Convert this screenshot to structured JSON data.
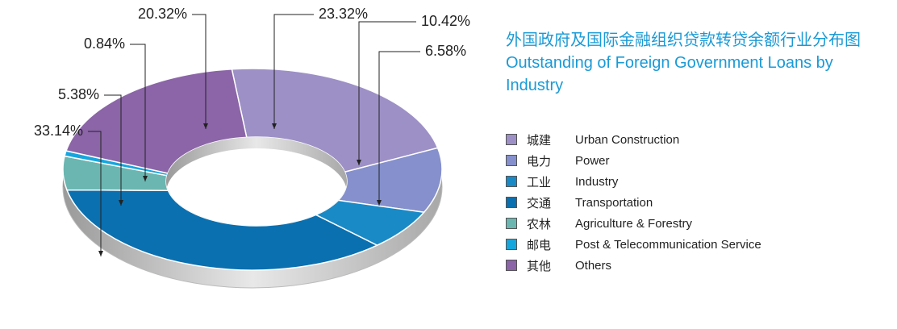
{
  "chart_data": {
    "type": "donut",
    "title": "外国政府及国际金融组织贷款转贷余额行业分布图",
    "subtitle": "Outstanding of Foreign Government Loans by Industry",
    "categories": [
      "Urban Construction",
      "Power",
      "Industry",
      "Transportation",
      "Agriculture & Forestry",
      "Post & Telecommunication Service",
      "Others"
    ],
    "categories_zh": [
      "城建",
      "电力",
      "工业",
      "交通",
      "农林",
      "邮电",
      "其他"
    ],
    "values": [
      23.32,
      10.42,
      6.58,
      33.14,
      5.38,
      0.84,
      20.32
    ],
    "value_labels": [
      "23.32%",
      "10.42%",
      "6.58%",
      "33.14%",
      "5.38%",
      "0.84%",
      "20.32%"
    ],
    "colors": [
      "#9d90c6",
      "#8590cc",
      "#1a8ac6",
      "#0a70b0",
      "#6bb6b1",
      "#16a6de",
      "#8b65a7"
    ]
  }
}
